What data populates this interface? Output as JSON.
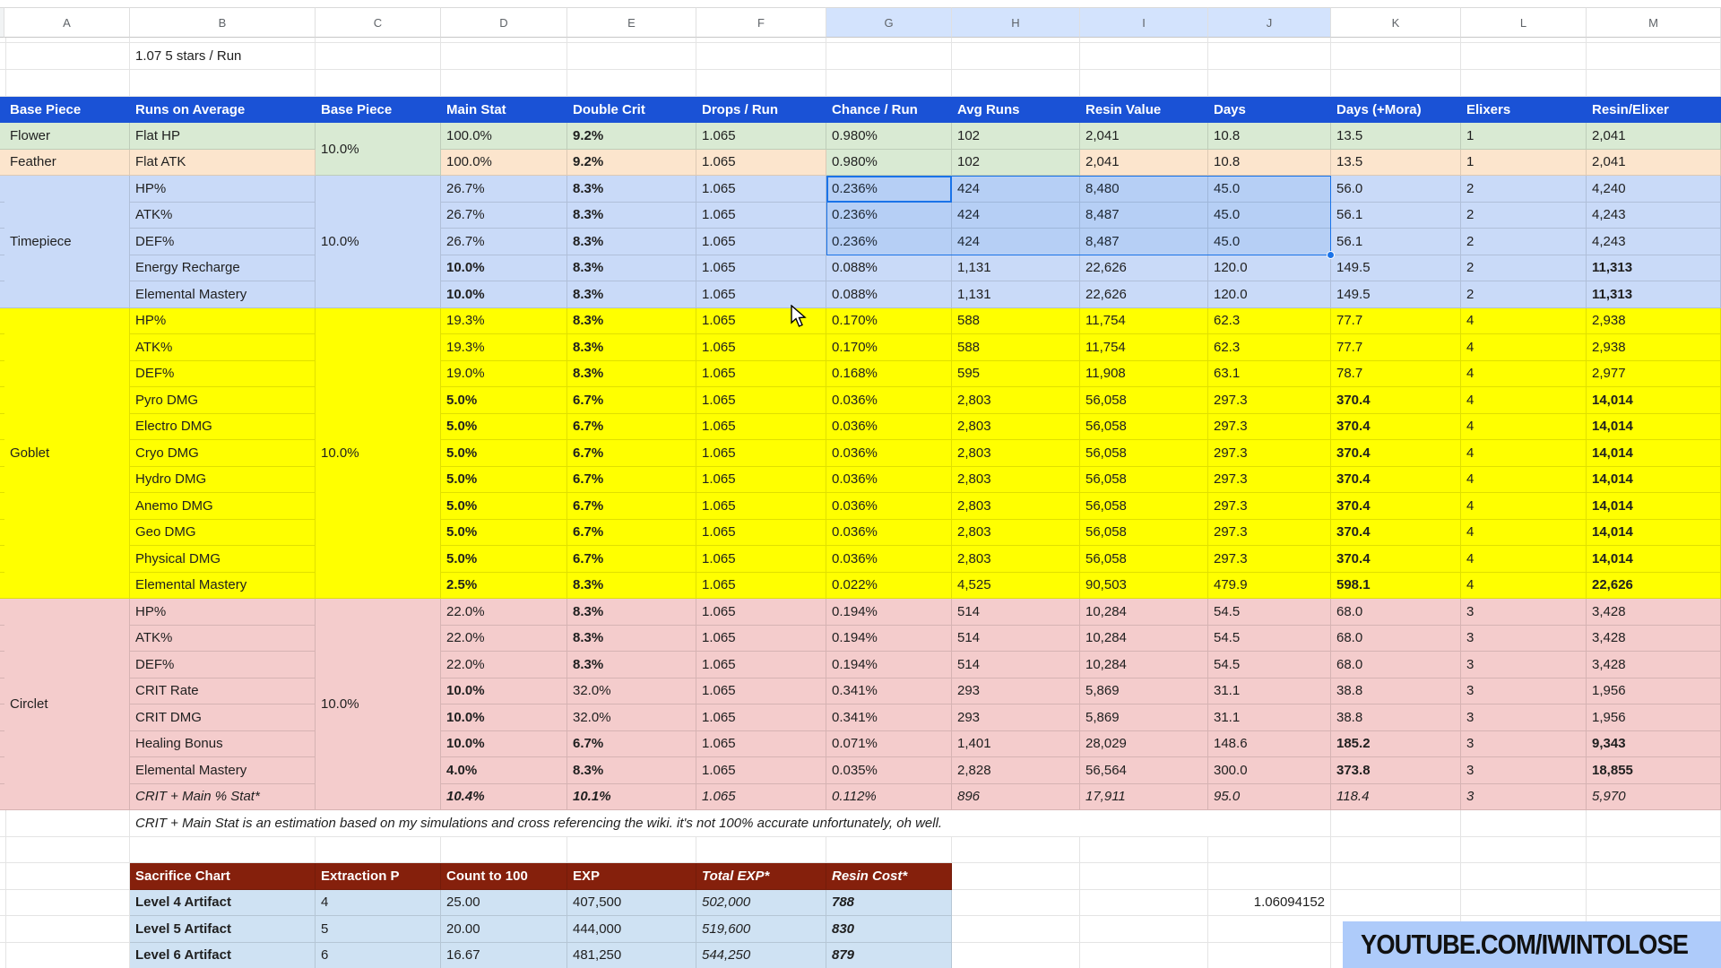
{
  "colors": {
    "header_blue": "#1a52d6",
    "flower_green": "#d9ead3",
    "feather_peach": "#fce5cd",
    "timepiece_blue": "#c9daf8",
    "goblet_yellow": "#ffff00",
    "circlet_pink": "#f4cccc",
    "sacrifice_header_red": "#85200c",
    "sacrifice_row_blue": "#cfe2f3",
    "selected_letter_bg": "#d3e3fd",
    "selection_accent": "#1a73e8",
    "banner_bg": "#aecbfa",
    "youtube_red": "#ff0000"
  },
  "sheet": {
    "column_letters": [
      "A",
      "B",
      "C",
      "D",
      "E",
      "F",
      "G",
      "H",
      "I",
      "J",
      "K",
      "L",
      "M"
    ],
    "selected_column_letters": [
      "G",
      "H",
      "I",
      "J"
    ],
    "top_note": "1.07 5 stars / Run",
    "column_headers": [
      "Base Piece",
      "Runs on Average",
      "Base Piece",
      "Main Stat",
      "Double Crit",
      "Drops / Run",
      "Chance / Run",
      "Avg Runs",
      "Resin Value",
      "Days",
      "Days (+Mora)",
      "Elixers",
      "Resin/Elixer"
    ],
    "groups": [
      {
        "piece": "",
        "piece_merged": false,
        "base_chance": "10.0%",
        "base_chance_bg": "#d9ead3",
        "rows": [
          {
            "piece": "Flower",
            "stat": "Flat HP",
            "bg": "#d9ead3",
            "values": [
              "100.0%",
              "9.2%",
              "1.065",
              "0.980%",
              "102",
              "2,041",
              "10.8",
              "13.5",
              "1",
              "2,041"
            ],
            "flags": [
              "",
              "b",
              "",
              "",
              "",
              "",
              "",
              "",
              "",
              ""
            ],
            "overrides": {
              "G": "#d9ead3",
              "H": "#d9ead3"
            }
          },
          {
            "piece": "Feather",
            "stat": "Flat ATK",
            "bg": "#fce5cd",
            "values": [
              "100.0%",
              "9.2%",
              "1.065",
              "0.980%",
              "102",
              "2,041",
              "10.8",
              "13.5",
              "1",
              "2,041"
            ],
            "flags": [
              "",
              "b",
              "",
              "",
              "",
              "",
              "",
              "",
              "",
              ""
            ],
            "overrides": {
              "G": "#d9ead3",
              "H": "#d9ead3"
            }
          }
        ]
      },
      {
        "piece": "Timepiece",
        "piece_merged": true,
        "bg": "#c9daf8",
        "base_chance": "10.0%",
        "rows": [
          {
            "stat": "HP%",
            "values": [
              "26.7%",
              "8.3%",
              "1.065",
              "0.236%",
              "424",
              "8,480",
              "45.0",
              "56.0",
              "2",
              "4,240"
            ],
            "flags": [
              "",
              "b",
              "",
              "",
              "",
              "",
              "",
              "",
              "",
              ""
            ]
          },
          {
            "stat": "ATK%",
            "values": [
              "26.7%",
              "8.3%",
              "1.065",
              "0.236%",
              "424",
              "8,487",
              "45.0",
              "56.1",
              "2",
              "4,243"
            ],
            "flags": [
              "",
              "b",
              "",
              "",
              "",
              "",
              "",
              "",
              "",
              ""
            ]
          },
          {
            "stat": "DEF%",
            "values": [
              "26.7%",
              "8.3%",
              "1.065",
              "0.236%",
              "424",
              "8,487",
              "45.0",
              "56.1",
              "2",
              "4,243"
            ],
            "flags": [
              "",
              "b",
              "",
              "",
              "",
              "",
              "",
              "",
              "",
              ""
            ]
          },
          {
            "stat": "Energy Recharge",
            "values": [
              "10.0%",
              "8.3%",
              "1.065",
              "0.088%",
              "1,131",
              "22,626",
              "120.0",
              "149.5",
              "2",
              "11,313"
            ],
            "flags": [
              "b",
              "b",
              "",
              "",
              "",
              "",
              "",
              "",
              "",
              "b"
            ]
          },
          {
            "stat": "Elemental Mastery",
            "values": [
              "10.0%",
              "8.3%",
              "1.065",
              "0.088%",
              "1,131",
              "22,626",
              "120.0",
              "149.5",
              "2",
              "11,313"
            ],
            "flags": [
              "b",
              "b",
              "",
              "",
              "",
              "",
              "",
              "",
              "",
              "b"
            ]
          }
        ]
      },
      {
        "piece": "Goblet",
        "piece_merged": true,
        "bg": "#ffff00",
        "base_chance": "10.0%",
        "rows": [
          {
            "stat": "HP%",
            "values": [
              "19.3%",
              "8.3%",
              "1.065",
              "0.170%",
              "588",
              "11,754",
              "62.3",
              "77.7",
              "4",
              "2,938"
            ],
            "flags": [
              "",
              "b",
              "",
              "",
              "",
              "",
              "",
              "",
              "",
              ""
            ]
          },
          {
            "stat": "ATK%",
            "values": [
              "19.3%",
              "8.3%",
              "1.065",
              "0.170%",
              "588",
              "11,754",
              "62.3",
              "77.7",
              "4",
              "2,938"
            ],
            "flags": [
              "",
              "b",
              "",
              "",
              "",
              "",
              "",
              "",
              "",
              ""
            ]
          },
          {
            "stat": "DEF%",
            "values": [
              "19.0%",
              "8.3%",
              "1.065",
              "0.168%",
              "595",
              "11,908",
              "63.1",
              "78.7",
              "4",
              "2,977"
            ],
            "flags": [
              "",
              "b",
              "",
              "",
              "",
              "",
              "",
              "",
              "",
              ""
            ]
          },
          {
            "stat": "Pyro DMG",
            "values": [
              "5.0%",
              "6.7%",
              "1.065",
              "0.036%",
              "2,803",
              "56,058",
              "297.3",
              "370.4",
              "4",
              "14,014"
            ],
            "flags": [
              "b",
              "b",
              "",
              "",
              "",
              "",
              "",
              "b",
              "",
              "b"
            ]
          },
          {
            "stat": "Electro DMG",
            "values": [
              "5.0%",
              "6.7%",
              "1.065",
              "0.036%",
              "2,803",
              "56,058",
              "297.3",
              "370.4",
              "4",
              "14,014"
            ],
            "flags": [
              "b",
              "b",
              "",
              "",
              "",
              "",
              "",
              "b",
              "",
              "b"
            ]
          },
          {
            "stat": "Cryo DMG",
            "values": [
              "5.0%",
              "6.7%",
              "1.065",
              "0.036%",
              "2,803",
              "56,058",
              "297.3",
              "370.4",
              "4",
              "14,014"
            ],
            "flags": [
              "b",
              "b",
              "",
              "",
              "",
              "",
              "",
              "b",
              "",
              "b"
            ]
          },
          {
            "stat": "Hydro DMG",
            "values": [
              "5.0%",
              "6.7%",
              "1.065",
              "0.036%",
              "2,803",
              "56,058",
              "297.3",
              "370.4",
              "4",
              "14,014"
            ],
            "flags": [
              "b",
              "b",
              "",
              "",
              "",
              "",
              "",
              "b",
              "",
              "b"
            ]
          },
          {
            "stat": "Anemo DMG",
            "values": [
              "5.0%",
              "6.7%",
              "1.065",
              "0.036%",
              "2,803",
              "56,058",
              "297.3",
              "370.4",
              "4",
              "14,014"
            ],
            "flags": [
              "b",
              "b",
              "",
              "",
              "",
              "",
              "",
              "b",
              "",
              "b"
            ]
          },
          {
            "stat": "Geo DMG",
            "values": [
              "5.0%",
              "6.7%",
              "1.065",
              "0.036%",
              "2,803",
              "56,058",
              "297.3",
              "370.4",
              "4",
              "14,014"
            ],
            "flags": [
              "b",
              "b",
              "",
              "",
              "",
              "",
              "",
              "b",
              "",
              "b"
            ]
          },
          {
            "stat": "Physical DMG",
            "values": [
              "5.0%",
              "6.7%",
              "1.065",
              "0.036%",
              "2,803",
              "56,058",
              "297.3",
              "370.4",
              "4",
              "14,014"
            ],
            "flags": [
              "b",
              "b",
              "",
              "",
              "",
              "",
              "",
              "b",
              "",
              "b"
            ]
          },
          {
            "stat": "Elemental Mastery",
            "values": [
              "2.5%",
              "8.3%",
              "1.065",
              "0.022%",
              "4,525",
              "90,503",
              "479.9",
              "598.1",
              "4",
              "22,626"
            ],
            "flags": [
              "b",
              "b",
              "",
              "",
              "",
              "",
              "",
              "b",
              "",
              "b"
            ]
          }
        ]
      },
      {
        "piece": "Circlet",
        "piece_merged": true,
        "bg": "#f4cccc",
        "base_chance": "10.0%",
        "rows": [
          {
            "stat": "HP%",
            "values": [
              "22.0%",
              "8.3%",
              "1.065",
              "0.194%",
              "514",
              "10,284",
              "54.5",
              "68.0",
              "3",
              "3,428"
            ],
            "flags": [
              "",
              "b",
              "",
              "",
              "",
              "",
              "",
              "",
              "",
              ""
            ]
          },
          {
            "stat": "ATK%",
            "values": [
              "22.0%",
              "8.3%",
              "1.065",
              "0.194%",
              "514",
              "10,284",
              "54.5",
              "68.0",
              "3",
              "3,428"
            ],
            "flags": [
              "",
              "b",
              "",
              "",
              "",
              "",
              "",
              "",
              "",
              ""
            ]
          },
          {
            "stat": "DEF%",
            "values": [
              "22.0%",
              "8.3%",
              "1.065",
              "0.194%",
              "514",
              "10,284",
              "54.5",
              "68.0",
              "3",
              "3,428"
            ],
            "flags": [
              "",
              "b",
              "",
              "",
              "",
              "",
              "",
              "",
              "",
              ""
            ]
          },
          {
            "stat": "CRIT Rate",
            "values": [
              "10.0%",
              "32.0%",
              "1.065",
              "0.341%",
              "293",
              "5,869",
              "31.1",
              "38.8",
              "3",
              "1,956"
            ],
            "flags": [
              "b",
              "",
              "",
              "",
              "",
              "",
              "",
              "",
              "",
              ""
            ]
          },
          {
            "stat": "CRIT DMG",
            "values": [
              "10.0%",
              "32.0%",
              "1.065",
              "0.341%",
              "293",
              "5,869",
              "31.1",
              "38.8",
              "3",
              "1,956"
            ],
            "flags": [
              "b",
              "",
              "",
              "",
              "",
              "",
              "",
              "",
              "",
              ""
            ]
          },
          {
            "stat": "Healing Bonus",
            "values": [
              "10.0%",
              "6.7%",
              "1.065",
              "0.071%",
              "1,401",
              "28,029",
              "148.6",
              "185.2",
              "3",
              "9,343"
            ],
            "flags": [
              "b",
              "b",
              "",
              "",
              "",
              "",
              "",
              "b",
              "",
              "b"
            ]
          },
          {
            "stat": "Elemental Mastery",
            "values": [
              "4.0%",
              "8.3%",
              "1.065",
              "0.035%",
              "2,828",
              "56,564",
              "300.0",
              "373.8",
              "3",
              "18,855"
            ],
            "flags": [
              "b",
              "b",
              "",
              "",
              "",
              "",
              "",
              "b",
              "",
              "b"
            ]
          },
          {
            "stat": "CRIT + Main % Stat*",
            "label_style": "i",
            "values": [
              "10.4%",
              "10.1%",
              "1.065",
              "0.112%",
              "896",
              "17,911",
              "95.0",
              "118.4",
              "3",
              "5,970"
            ],
            "flags": [
              "bi",
              "bi",
              "i",
              "i",
              "i",
              "i",
              "i",
              "i",
              "i",
              "i"
            ]
          }
        ]
      }
    ],
    "footnote": "CRIT + Main Stat is an estimation based on my simulations and cross referencing the wiki. it's not 100% accurate unfortunately, oh well.",
    "extraction_factor": "1.06094152"
  },
  "selection": {
    "section": "Timepiece",
    "active_cell_stat": "HP%",
    "active_cell_column": "G",
    "active_cell_value": "0.236%",
    "range_columns": [
      "G",
      "H",
      "I",
      "J"
    ],
    "range_stats": [
      "HP%",
      "ATK%",
      "DEF%"
    ]
  },
  "sacrifice_chart": {
    "headers": [
      "Sacrifice Chart",
      "Extraction P",
      "Count to 100",
      "EXP",
      "Total EXP*",
      "Resin Cost*"
    ],
    "header_styles": [
      "b",
      "b",
      "b",
      "b",
      "bi",
      "bi"
    ],
    "rows": [
      {
        "label": "Level 4 Artifact",
        "values": [
          "4",
          "25.00",
          "407,500",
          "502,000",
          "788"
        ]
      },
      {
        "label": "Level 5 Artifact",
        "values": [
          "5",
          "20.00",
          "444,000",
          "519,600",
          "830"
        ]
      },
      {
        "label": "Level 6 Artifact",
        "values": [
          "6",
          "16.67",
          "481,250",
          "544,250",
          "879"
        ]
      }
    ],
    "value_styles": [
      "",
      "",
      "",
      "i",
      "bi"
    ]
  },
  "banner": {
    "text": "YOUTUBE.COM/IWINTOLOSE",
    "icon": "youtube-play-icon"
  }
}
